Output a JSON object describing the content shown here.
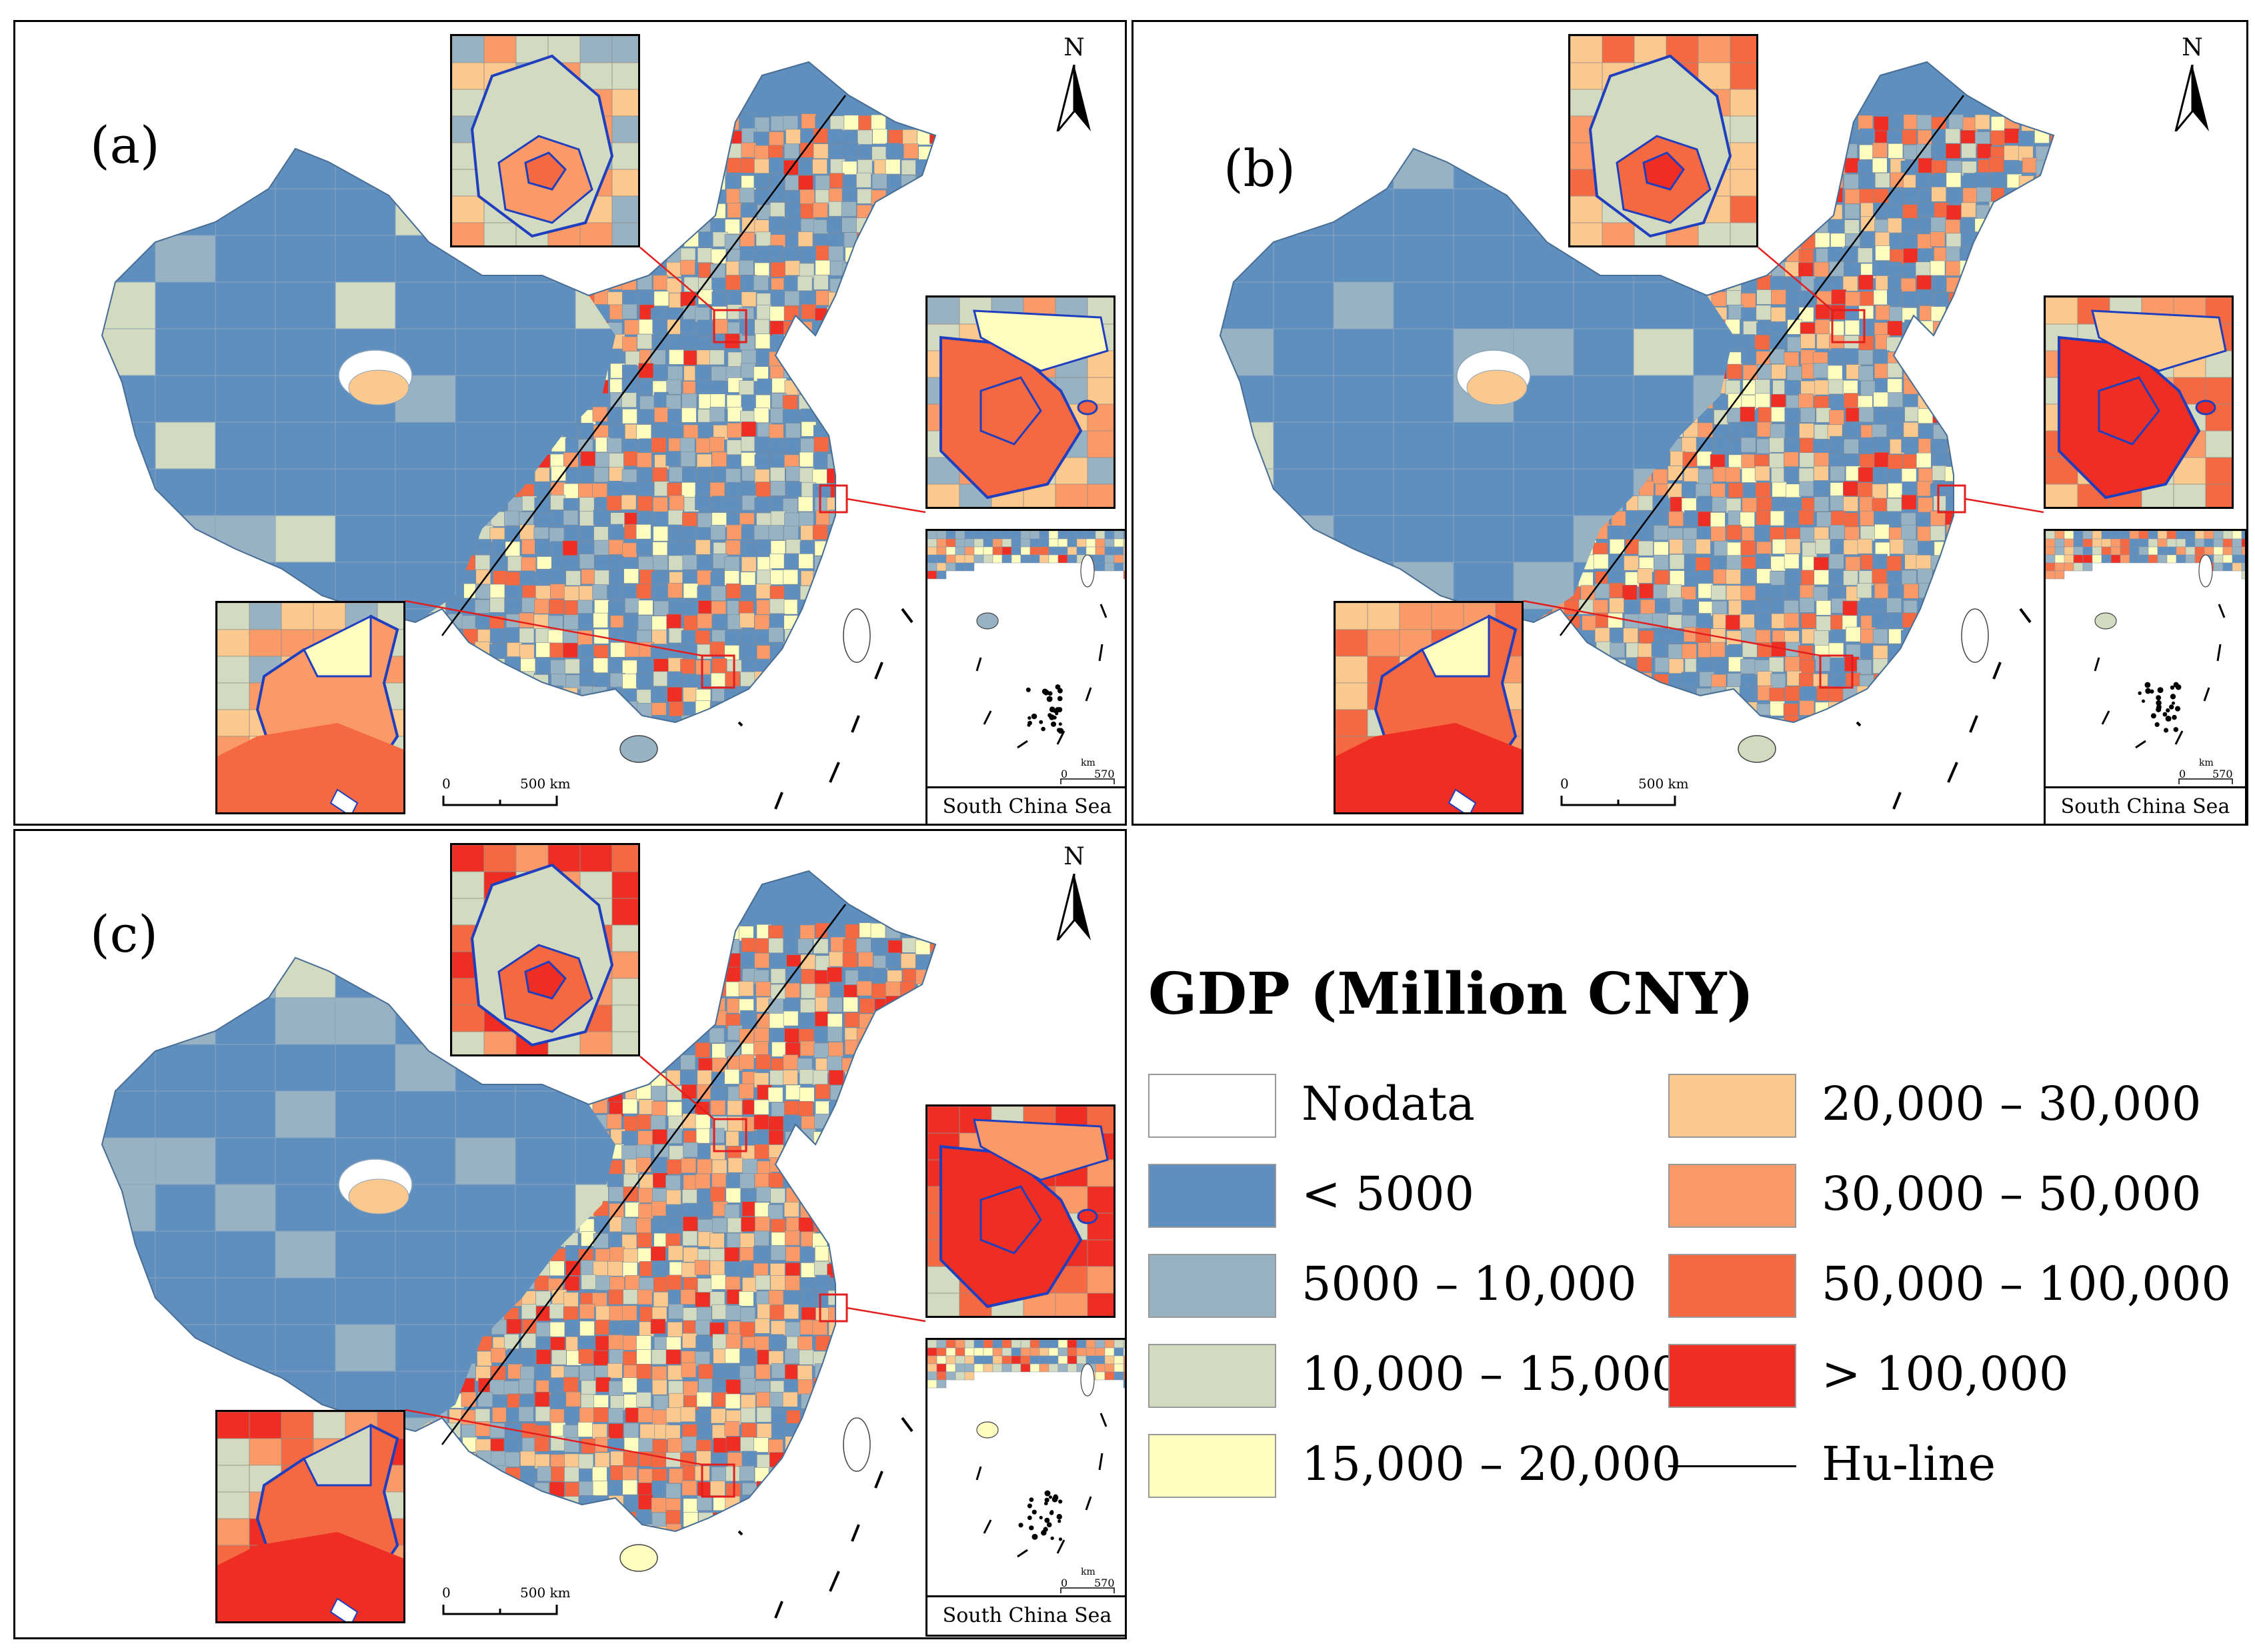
{
  "panels": [
    {
      "label": "(a)",
      "north": "N",
      "south_china_sea": "South China Sea",
      "scale_zero": "0",
      "scale_value": "500 km",
      "scs_scale_zero": "0",
      "scs_scale_value": "570",
      "scs_scale_unit": "km"
    },
    {
      "label": "(b)",
      "north": "N",
      "south_china_sea": "South China Sea",
      "scale_zero": "0",
      "scale_value": "500 km",
      "scs_scale_zero": "0",
      "scs_scale_value": "570",
      "scs_scale_unit": "km"
    },
    {
      "label": "(c)",
      "north": "N",
      "south_china_sea": "South China Sea",
      "scale_zero": "0",
      "scale_value": "500 km",
      "scs_scale_zero": "0",
      "scs_scale_value": "570",
      "scs_scale_unit": "km"
    }
  ],
  "legend": {
    "title": "GDP (Million CNY)",
    "items": [
      {
        "label": "Nodata",
        "color": "#ffffff"
      },
      {
        "label": "< 5000",
        "color": "#5f8fbf"
      },
      {
        "label": "5000 – 10,000",
        "color": "#97b2c2"
      },
      {
        "label": "10,000 – 15,000",
        "color": "#d2dac0"
      },
      {
        "label": "15,000 – 20,000",
        "color": "#fdfdc0"
      },
      {
        "label": "20,000 – 30,000",
        "color": "#fbc98e"
      },
      {
        "label": "30,000 – 50,000",
        "color": "#f99a68"
      },
      {
        "label": "50,000 – 100,000",
        "color": "#f46842"
      },
      {
        "label": "> 100,000",
        "color": "#ee2e22"
      }
    ],
    "hu_line": "Hu-line"
  }
}
